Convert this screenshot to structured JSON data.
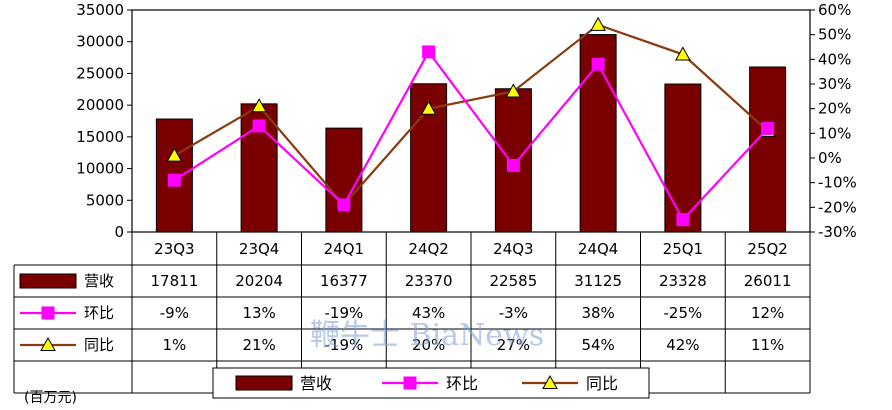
{
  "chart_data": {
    "type": "bar",
    "categories": [
      "23Q3",
      "23Q4",
      "24Q1",
      "24Q2",
      "24Q3",
      "24Q4",
      "25Q1",
      "25Q2"
    ],
    "series": [
      {
        "name": "营收",
        "type": "bar",
        "axis": "left",
        "color": "#7a0000",
        "values": [
          17811,
          20204,
          16377,
          23370,
          22585,
          31125,
          23328,
          26011
        ],
        "labels": [
          "17811",
          "20204",
          "16377",
          "23370",
          "22585",
          "31125",
          "23328",
          "26011"
        ]
      },
      {
        "name": "环比",
        "type": "line",
        "axis": "right",
        "color": "#ff00ff",
        "marker": "square",
        "values": [
          -9,
          13,
          -19,
          43,
          -3,
          38,
          -25,
          12
        ],
        "labels": [
          "-9%",
          "13%",
          "-19%",
          "43%",
          "-3%",
          "38%",
          "-25%",
          "12%"
        ]
      },
      {
        "name": "同比",
        "type": "line",
        "axis": "right",
        "color": "#8b3a0e",
        "marker": "triangle",
        "marker_fill": "#ffff00",
        "values": [
          1,
          21,
          -19,
          20,
          27,
          54,
          42,
          11
        ],
        "labels": [
          "1%",
          "21%",
          "-19%",
          "20%",
          "27%",
          "54%",
          "42%",
          "11%"
        ]
      }
    ],
    "y_left": {
      "min": 0,
      "max": 35000,
      "step": 5000,
      "ticks": [
        "0",
        "5000",
        "10000",
        "15000",
        "20000",
        "25000",
        "30000",
        "35000"
      ]
    },
    "y_right": {
      "min": -30,
      "max": 60,
      "step": 10,
      "ticks": [
        "-30%",
        "-20%",
        "-10%",
        "0%",
        "10%",
        "20%",
        "30%",
        "40%",
        "50%",
        "60%"
      ]
    },
    "unit": "(百万元)",
    "legend_position": "bottom",
    "grid": false,
    "data_table": true,
    "watermark": "鞭牛士 BiaNews"
  }
}
